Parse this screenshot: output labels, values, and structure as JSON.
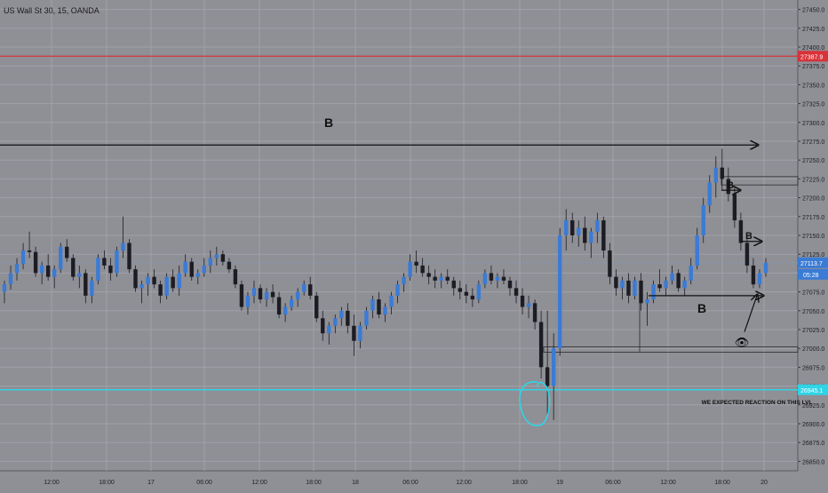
{
  "header": {
    "title": "US Wall St 30, 15, OANDA"
  },
  "chart_data": {
    "type": "candlestick",
    "title": "US Wall St 30, 15, OANDA",
    "ylim": [
      26850,
      27475
    ],
    "y_ticks": [
      "27450.0",
      "27425.0",
      "27400.0",
      "27375.0",
      "27350.0",
      "27325.0",
      "27300.0",
      "27275.0",
      "27250.0",
      "27225.0",
      "27200.0",
      "27175.0",
      "27150.0",
      "27125.0",
      "27100.0",
      "27075.0",
      "27050.0",
      "27025.0",
      "27000.0",
      "26975.0",
      "26950.0",
      "26925.0",
      "26900.0",
      "26875.0",
      "26850.0"
    ],
    "x_ticks": [
      "12:00",
      "18:00",
      "17",
      "06:00",
      "12:00",
      "18:00",
      "18",
      "06:00",
      "12:00",
      "18:00",
      "19",
      "06:00",
      "12:00",
      "18:00",
      "20"
    ],
    "price_labels": {
      "red_level": "27387.9",
      "current": "27113.7",
      "countdown": "05:28",
      "cyan_level": "26945.1"
    },
    "levels": {
      "red": 27387.9,
      "current": 27113.7,
      "cyan": 26945.1,
      "bottom_zone": [
        26995,
        27002
      ],
      "top_zone": [
        27217,
        27228
      ]
    },
    "annotations": {
      "symbol": "B",
      "zone_note": "WE EXPECTED REACTION ON THIS LVL",
      "eye": "👁"
    },
    "series": [
      {
        "values": [
          [
            27075,
            27090,
            27060,
            27085
          ],
          [
            27085,
            27110,
            27078,
            27100
          ],
          [
            27100,
            27120,
            27090,
            27112
          ],
          [
            27112,
            27140,
            27105,
            27130
          ],
          [
            27130,
            27155,
            27120,
            27128
          ],
          [
            27128,
            27135,
            27095,
            27100
          ],
          [
            27100,
            27115,
            27085,
            27110
          ],
          [
            27110,
            27125,
            27090,
            27095
          ],
          [
            27095,
            27110,
            27080,
            27105
          ],
          [
            27105,
            27140,
            27100,
            27135
          ],
          [
            27135,
            27145,
            27115,
            27120
          ],
          [
            27120,
            27125,
            27090,
            27095
          ],
          [
            27095,
            27110,
            27080,
            27100
          ],
          [
            27100,
            27105,
            27060,
            27070
          ],
          [
            27070,
            27095,
            27060,
            27090
          ],
          [
            27090,
            27125,
            27085,
            27120
          ],
          [
            27120,
            27130,
            27105,
            27110
          ],
          [
            27110,
            27120,
            27090,
            27100
          ],
          [
            27100,
            27135,
            27095,
            27130
          ],
          [
            27130,
            27175,
            27120,
            27140
          ],
          [
            27140,
            27145,
            27100,
            27105
          ],
          [
            27105,
            27110,
            27075,
            27080
          ],
          [
            27080,
            27090,
            27060,
            27085
          ],
          [
            27085,
            27100,
            27070,
            27095
          ],
          [
            27095,
            27105,
            27080,
            27085
          ],
          [
            27085,
            27090,
            27060,
            27070
          ],
          [
            27070,
            27100,
            27065,
            27095
          ],
          [
            27095,
            27105,
            27075,
            27080
          ],
          [
            27080,
            27110,
            27070,
            27100
          ],
          [
            27100,
            27125,
            27095,
            27115
          ],
          [
            27115,
            27120,
            27090,
            27095
          ],
          [
            27095,
            27105,
            27085,
            27100
          ],
          [
            27100,
            27120,
            27095,
            27110
          ],
          [
            27110,
            27130,
            27100,
            27120
          ],
          [
            27120,
            27135,
            27110,
            27125
          ],
          [
            27125,
            27130,
            27110,
            27115
          ],
          [
            27115,
            27120,
            27100,
            27105
          ],
          [
            27105,
            27110,
            27080,
            27085
          ],
          [
            27085,
            27090,
            27050,
            27055
          ],
          [
            27055,
            27075,
            27045,
            27070
          ],
          [
            27070,
            27090,
            27060,
            27080
          ],
          [
            27080,
            27085,
            27060,
            27065
          ],
          [
            27065,
            27080,
            27055,
            27075
          ],
          [
            27075,
            27085,
            27060,
            27068
          ],
          [
            27068,
            27075,
            27040,
            27045
          ],
          [
            27045,
            27060,
            27035,
            27055
          ],
          [
            27055,
            27070,
            27050,
            27065
          ],
          [
            27065,
            27080,
            27055,
            27075
          ],
          [
            27075,
            27090,
            27070,
            27085
          ],
          [
            27085,
            27095,
            27065,
            27070
          ],
          [
            27070,
            27075,
            27035,
            27040
          ],
          [
            27040,
            27050,
            27010,
            27020
          ],
          [
            27020,
            27035,
            27005,
            27030
          ],
          [
            27030,
            27045,
            27020,
            27040
          ],
          [
            27040,
            27055,
            27030,
            27050
          ],
          [
            27050,
            27060,
            27020,
            27030
          ],
          [
            27030,
            27045,
            26990,
            27010
          ],
          [
            27010,
            27035,
            27000,
            27030
          ],
          [
            27030,
            27055,
            27025,
            27050
          ],
          [
            27050,
            27070,
            27040,
            27065
          ],
          [
            27065,
            27075,
            27040,
            27045
          ],
          [
            27045,
            27060,
            27035,
            27055
          ],
          [
            27055,
            27075,
            27045,
            27070
          ],
          [
            27070,
            27090,
            27060,
            27085
          ],
          [
            27085,
            27100,
            27075,
            27095
          ],
          [
            27095,
            27125,
            27090,
            27115
          ],
          [
            27115,
            27130,
            27100,
            27110
          ],
          [
            27110,
            27120,
            27095,
            27100
          ],
          [
            27100,
            27110,
            27085,
            27095
          ],
          [
            27095,
            27105,
            27080,
            27090
          ],
          [
            27090,
            27100,
            27080,
            27095
          ],
          [
            27095,
            27105,
            27085,
            27090
          ],
          [
            27090,
            27095,
            27070,
            27080
          ],
          [
            27080,
            27090,
            27065,
            27075
          ],
          [
            27075,
            27085,
            27060,
            27070
          ],
          [
            27070,
            27080,
            27055,
            27065
          ],
          [
            27065,
            27090,
            27060,
            27085
          ],
          [
            27085,
            27105,
            27080,
            27100
          ],
          [
            27100,
            27110,
            27085,
            27090
          ],
          [
            27090,
            27100,
            27080,
            27095
          ],
          [
            27095,
            27105,
            27085,
            27090
          ],
          [
            27090,
            27095,
            27070,
            27080
          ],
          [
            27080,
            27090,
            27060,
            27070
          ],
          [
            27070,
            27080,
            27045,
            27055
          ],
          [
            27055,
            27070,
            27040,
            27060
          ],
          [
            27060,
            27065,
            27025,
            27035
          ],
          [
            27035,
            27050,
            26960,
            26975
          ],
          [
            26975,
            27050,
            26910,
            26950
          ],
          [
            26950,
            27020,
            26905,
            27000
          ],
          [
            27000,
            27160,
            26990,
            27150
          ],
          [
            27150,
            27185,
            27130,
            27170
          ],
          [
            27170,
            27180,
            27140,
            27150
          ],
          [
            27150,
            27170,
            27135,
            27160
          ],
          [
            27160,
            27175,
            27130,
            27140
          ],
          [
            27140,
            27160,
            27120,
            27155
          ],
          [
            27155,
            27180,
            27140,
            27170
          ],
          [
            27170,
            27175,
            27120,
            27130
          ],
          [
            27130,
            27140,
            27085,
            27095
          ],
          [
            27095,
            27105,
            27070,
            27080
          ],
          [
            27080,
            27095,
            27065,
            27090
          ],
          [
            27090,
            27100,
            27060,
            27070
          ],
          [
            27070,
            27095,
            27065,
            27090
          ],
          [
            27090,
            27100,
            27050,
            27060
          ],
          [
            27060,
            27075,
            27030,
            27065
          ],
          [
            27065,
            27090,
            27060,
            27085
          ],
          [
            27085,
            27105,
            27075,
            27080
          ],
          [
            27080,
            27095,
            27070,
            27090
          ],
          [
            27090,
            27110,
            27085,
            27100
          ],
          [
            27100,
            27105,
            27075,
            27080
          ],
          [
            27080,
            27095,
            27070,
            27090
          ],
          [
            27090,
            27120,
            27085,
            27110
          ],
          [
            27110,
            27160,
            27105,
            27150
          ],
          [
            27150,
            27200,
            27140,
            27190
          ],
          [
            27190,
            27230,
            27180,
            27220
          ],
          [
            27220,
            27255,
            27200,
            27240
          ],
          [
            27240,
            27265,
            27210,
            27225
          ],
          [
            27225,
            27240,
            27195,
            27205
          ],
          [
            27205,
            27215,
            27160,
            27170
          ],
          [
            27170,
            27180,
            27130,
            27140
          ],
          [
            27140,
            27150,
            27100,
            27110
          ],
          [
            27110,
            27120,
            27080,
            27085
          ],
          [
            27085,
            27105,
            27080,
            27100
          ],
          [
            27100,
            27120,
            27095,
            27113.7
          ]
        ]
      }
    ]
  }
}
